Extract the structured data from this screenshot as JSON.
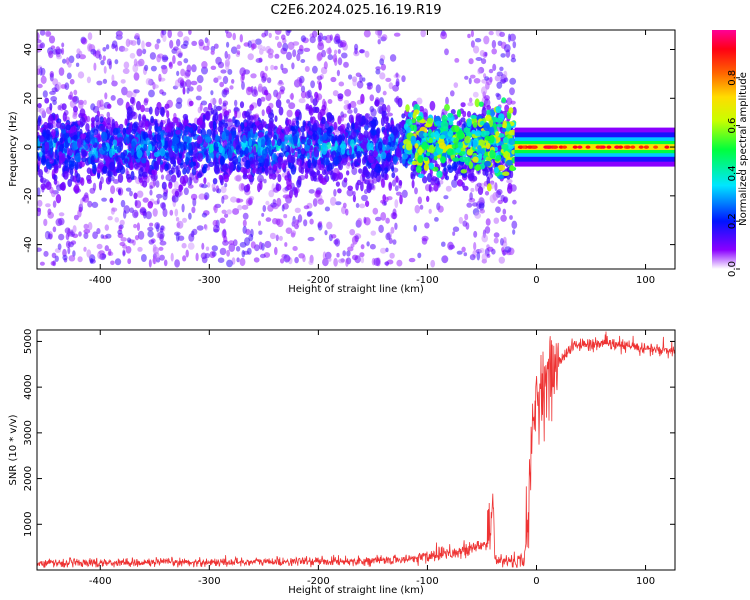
{
  "figure": {
    "title": "C2E6.2024.025.16.19.R19"
  },
  "chart_data": [
    {
      "type": "heatmap",
      "xlabel": "Height of straight line (km)",
      "ylabel": "Frequency (Hz)",
      "xlim": [
        -458,
        127
      ],
      "ylim": [
        -50,
        48
      ],
      "xticks": [
        -400,
        -300,
        -200,
        -100,
        0,
        100
      ],
      "yticks": [
        -40,
        -20,
        0,
        20,
        40
      ],
      "colorbar": {
        "label": "Normalized spectral amplitude",
        "range": [
          0,
          1
        ],
        "ticks": [
          "0.0",
          "0.2",
          "0.4",
          "0.6",
          "0.8"
        ],
        "tick_values": [
          0.0,
          0.2,
          0.4,
          0.6,
          0.8
        ],
        "colormap": "gist_rainbow_r",
        "stops": [
          "#ffffff",
          "#8a00ff",
          "#0014ff",
          "#00e6ff",
          "#00ff3c",
          "#c8ff00",
          "#ffdc00",
          "#ff6400",
          "#ff0014",
          "#ff0096"
        ]
      },
      "bands": [
        {
          "x_from": -458,
          "x_to": -20,
          "center": 0,
          "half_width": 7,
          "peak": 0.35,
          "scatter_half_width": 48,
          "scatter_peak": 0.12
        },
        {
          "x_from": -120,
          "x_to": -20,
          "center": 2,
          "half_width": 9,
          "peak": 0.45
        },
        {
          "x_from": -20,
          "x_to": 127,
          "center": 0,
          "half_width": 2,
          "peak": 0.85
        }
      ],
      "grid": false
    },
    {
      "type": "line",
      "xlabel": "Height of straight line (km)",
      "ylabel": "SNR (10 * v/v)",
      "xlim": [
        -458,
        127
      ],
      "ylim": [
        0,
        5250
      ],
      "xticks": [
        -400,
        -300,
        -200,
        -100,
        0,
        100
      ],
      "yticks": [
        1000,
        2000,
        3000,
        4000,
        5000
      ],
      "color": "#ee3333",
      "series_points": [
        [
          -458,
          150
        ],
        [
          -400,
          160
        ],
        [
          -300,
          170
        ],
        [
          -200,
          190
        ],
        [
          -150,
          200
        ],
        [
          -120,
          230
        ],
        [
          -100,
          300
        ],
        [
          -85,
          400
        ],
        [
          -70,
          380
        ],
        [
          -55,
          500
        ],
        [
          -42,
          600
        ],
        [
          -40,
          1700
        ],
        [
          -38,
          200
        ],
        [
          -25,
          200
        ],
        [
          -12,
          200
        ],
        [
          -8,
          1000
        ],
        [
          -3,
          3200
        ],
        [
          0,
          3800
        ],
        [
          4,
          4000
        ],
        [
          8,
          4100
        ],
        [
          15,
          4300
        ],
        [
          25,
          4700
        ],
        [
          35,
          4920
        ],
        [
          60,
          4950
        ],
        [
          90,
          4880
        ],
        [
          127,
          4760
        ]
      ],
      "noise_amplitude": 80,
      "grid": false
    }
  ]
}
